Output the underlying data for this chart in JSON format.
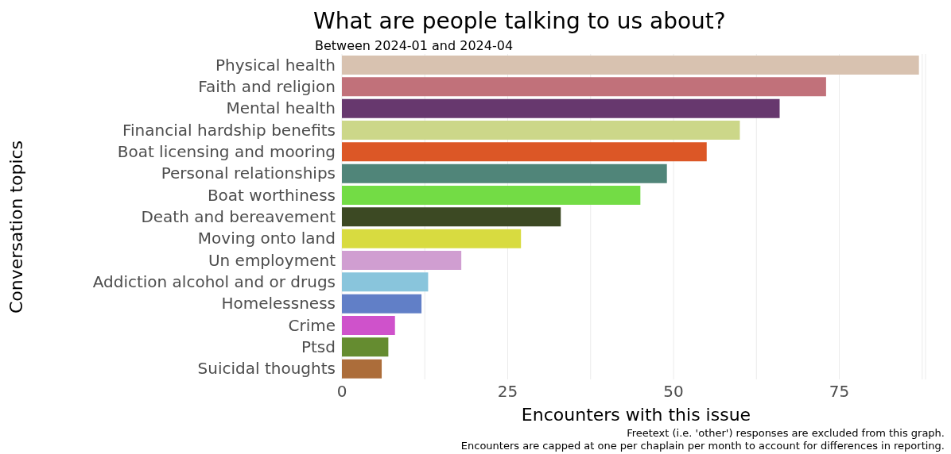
{
  "chart_data": {
    "type": "bar",
    "orientation": "horizontal",
    "title": "What are people talking to us about?",
    "subtitle": "Between 2024-01 and 2024-04",
    "xlabel": "Encounters with this issue",
    "ylabel": "Conversation topics",
    "categories": [
      "Physical health",
      "Faith and religion",
      "Mental health",
      "Financial hardship benefits",
      "Boat licensing and mooring",
      "Personal relationships",
      "Boat worthiness",
      "Death and bereavement",
      "Moving onto land",
      "Un employment",
      "Addiction alcohol and or drugs",
      "Homelessness",
      "Crime",
      "Ptsd",
      "Suicidal thoughts"
    ],
    "values": [
      87,
      73,
      66,
      60,
      55,
      49,
      45,
      33,
      27,
      18,
      13,
      12,
      8,
      7,
      6
    ],
    "colors": [
      "#d8c2b0",
      "#c1717a",
      "#67386e",
      "#ccd789",
      "#dc5726",
      "#508579",
      "#73dc45",
      "#3c4923",
      "#d8db40",
      "#d09ed1",
      "#89c5dc",
      "#617fc7",
      "#cf52cb",
      "#658c30",
      "#ac6d3a"
    ],
    "xlim": [
      0,
      88
    ],
    "xticks": [
      0,
      {
        "value": 12.5,
        "label": null
      },
      25,
      {
        "value": 37.5,
        "label": null
      },
      50,
      {
        "value": 62.5,
        "label": null
      },
      75,
      {
        "value": 87.5,
        "label": null
      }
    ],
    "grid": "x",
    "annotations": [
      "Freetext (i.e. 'other') responses are excluded from this graph.",
      "Encounters are capped at one per chaplain per month to account for differences in reporting."
    ]
  }
}
